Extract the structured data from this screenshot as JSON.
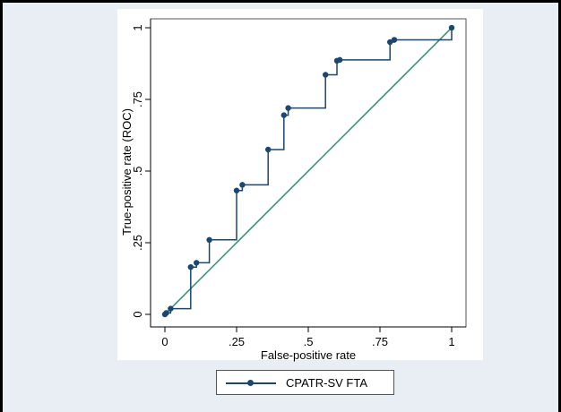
{
  "chart_data": {
    "type": "line",
    "title": "",
    "xlabel": "False-positive rate",
    "ylabel": "True-positive rate (ROC)",
    "xlim": [
      0,
      1
    ],
    "ylim": [
      0,
      1
    ],
    "x_ticks": [
      0,
      0.25,
      0.5,
      0.75,
      1
    ],
    "x_tick_labels": [
      "0",
      ".25",
      ".5",
      ".75",
      "1"
    ],
    "y_ticks": [
      0,
      0.25,
      0.5,
      0.75,
      1
    ],
    "y_tick_labels": [
      "0",
      ".25",
      ".5",
      ".75",
      "1"
    ],
    "grid": false,
    "legend_position": "bottom",
    "series": [
      {
        "name": "CPATR-SV FTA",
        "color": "#1a476f",
        "marker": "circle",
        "line_style": "step",
        "points": [
          [
            0,
            0
          ],
          [
            0.005,
            0.005
          ],
          [
            0.02,
            0.02
          ],
          [
            0.09,
            0.165
          ],
          [
            0.11,
            0.18
          ],
          [
            0.155,
            0.26
          ],
          [
            0.25,
            0.432
          ],
          [
            0.27,
            0.452
          ],
          [
            0.36,
            0.575
          ],
          [
            0.415,
            0.695
          ],
          [
            0.43,
            0.72
          ],
          [
            0.56,
            0.836
          ],
          [
            0.6,
            0.885
          ],
          [
            0.61,
            0.888
          ],
          [
            0.785,
            0.95
          ],
          [
            0.8,
            0.958
          ],
          [
            1.0,
            1.0
          ]
        ]
      },
      {
        "name": "",
        "color": "#2e8b6c",
        "marker": "none",
        "line_style": "straight",
        "points": [
          [
            0,
            0
          ],
          [
            1,
            1
          ]
        ]
      }
    ]
  }
}
